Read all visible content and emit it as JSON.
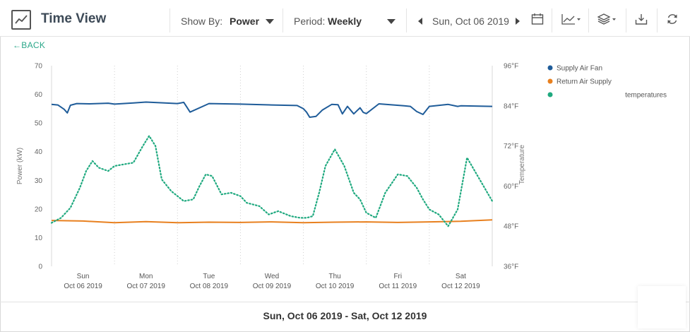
{
  "header": {
    "title": "Time View",
    "show_by_label": "Show By:",
    "show_by_value": "Power",
    "period_label": "Period:",
    "period_value": "Weekly",
    "date": "Sun, Oct 06 2019"
  },
  "icons": [
    "line-chart-app-icon",
    "calendar-icon",
    "chart-type-icon",
    "layers-icon",
    "download-icon",
    "refresh-icon"
  ],
  "back_label": "←BACK",
  "range_text": "Sun, Oct 06 2019 - Sat, Oct 12 2019",
  "chart_data": {
    "type": "line",
    "title": "",
    "xlabel": "",
    "ylabel": "Power (kW)",
    "y2label": "Temperature",
    "ylim": [
      0,
      70
    ],
    "yticks": [
      "0",
      "10",
      "20",
      "30",
      "40",
      "50",
      "60",
      "70"
    ],
    "y2lim": [
      36,
      96
    ],
    "y2ticks": [
      "36°F",
      "48°F",
      "60°F",
      "72°F",
      "84°F",
      "96°F"
    ],
    "x_days": [
      {
        "day": "Sun",
        "date": "Oct 06 2019"
      },
      {
        "day": "Mon",
        "date": "Oct 07 2019"
      },
      {
        "day": "Tue",
        "date": "Oct 08 2019"
      },
      {
        "day": "Wed",
        "date": "Oct 09 2019"
      },
      {
        "day": "Thu",
        "date": "Oct 10 2019"
      },
      {
        "day": "Fri",
        "date": "Oct 11 2019"
      },
      {
        "day": "Sat",
        "date": "Oct 12 2019"
      }
    ],
    "grid": "vertical-dotted",
    "legend_position": "right",
    "series": [
      {
        "name": "Supply Air Fan",
        "color": "#1f5c99",
        "axis": "left",
        "style": "solid",
        "x": [
          0,
          0.1,
          0.2,
          0.25,
          0.3,
          0.4,
          0.6,
          0.9,
          1.0,
          1.3,
          1.5,
          1.8,
          2.0,
          2.1,
          2.15,
          2.2,
          2.5,
          3.0,
          3.5,
          3.9,
          4.0,
          4.05,
          4.1,
          4.2,
          4.3,
          4.45,
          4.55,
          4.62,
          4.7,
          4.8,
          4.9,
          4.95,
          5.0,
          5.2,
          5.6,
          5.7,
          5.8,
          5.9,
          6.0,
          6.3,
          6.45,
          6.5,
          7.0
        ],
        "values": [
          56.5,
          56.3,
          54.8,
          53.5,
          56.2,
          56.8,
          56.7,
          56.9,
          56.6,
          57.0,
          57.3,
          57.0,
          56.8,
          57.2,
          55.5,
          53.8,
          56.8,
          56.6,
          56.3,
          56.1,
          55.0,
          53.8,
          52.0,
          52.3,
          54.5,
          56.5,
          56.4,
          53.2,
          55.8,
          53.2,
          55.3,
          53.7,
          53.3,
          56.7,
          56.0,
          55.8,
          54.0,
          53.0,
          55.8,
          56.5,
          55.8,
          56.0,
          55.8
        ]
      },
      {
        "name": "Return Air Supply",
        "color": "#e8801f",
        "axis": "left",
        "style": "solid",
        "x": [
          0,
          0.5,
          1.0,
          1.5,
          2.0,
          2.5,
          3.0,
          3.5,
          4.0,
          4.5,
          5.0,
          5.5,
          6.0,
          6.5,
          7.0
        ],
        "values": [
          16.0,
          15.8,
          15.2,
          15.6,
          15.2,
          15.4,
          15.3,
          15.5,
          15.2,
          15.4,
          15.5,
          15.3,
          15.5,
          15.7,
          16.2
        ]
      },
      {
        "name": "temperatures",
        "color": "#1fa97f",
        "axis": "right",
        "style": "dotted",
        "x": [
          0,
          0.15,
          0.3,
          0.45,
          0.55,
          0.65,
          0.75,
          0.9,
          1.0,
          1.15,
          1.3,
          1.45,
          1.55,
          1.65,
          1.75,
          1.9,
          2.0,
          2.1,
          2.25,
          2.35,
          2.45,
          2.55,
          2.7,
          2.85,
          3.0,
          3.1,
          3.3,
          3.45,
          3.6,
          3.8,
          3.95,
          4.05,
          4.15,
          4.25,
          4.35,
          4.5,
          4.65,
          4.8,
          4.9,
          5.0,
          5.15,
          5.3,
          5.5,
          5.65,
          5.8,
          5.9,
          6.0,
          6.15,
          6.3,
          6.45,
          6.6,
          7.0
        ],
        "values": [
          49.0,
          50.5,
          53.5,
          59.5,
          64.5,
          67.5,
          65.5,
          64.5,
          66.0,
          66.5,
          67.0,
          72.0,
          75.0,
          72.0,
          62.0,
          58.5,
          57.0,
          55.5,
          56.0,
          60.0,
          63.5,
          63.0,
          57.5,
          58.0,
          57.0,
          55.0,
          54.0,
          51.5,
          52.5,
          51.0,
          50.5,
          50.5,
          51.0,
          58.0,
          66.0,
          71.0,
          66.0,
          58.0,
          56.0,
          52.0,
          50.5,
          58.0,
          63.5,
          63.0,
          59.5,
          56.0,
          53.0,
          51.5,
          48.0,
          53.0,
          68.5,
          55.5
        ]
      }
    ]
  }
}
